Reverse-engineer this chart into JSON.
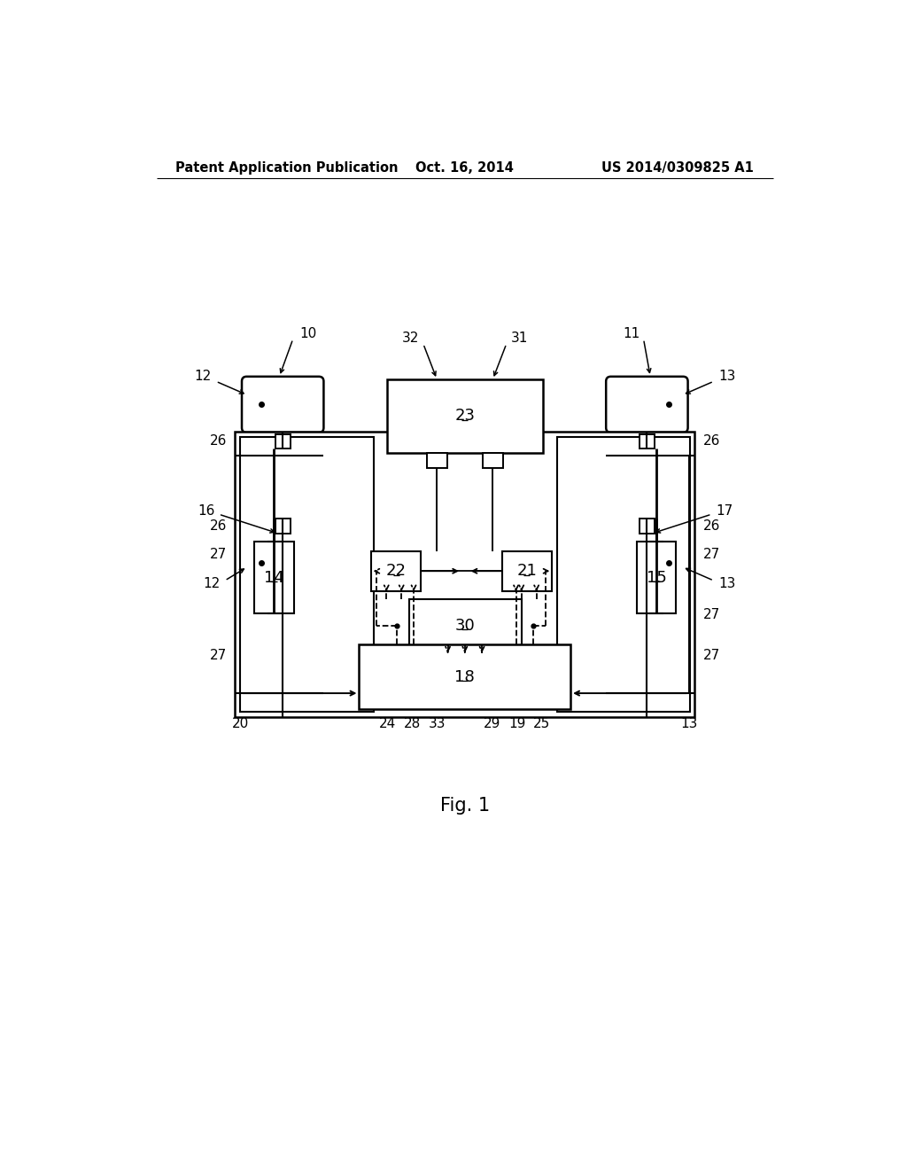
{
  "background_color": "#ffffff",
  "header_left": "Patent Application Publication",
  "header_center": "Oct. 16, 2014",
  "header_right": "US 2014/0309825 A1",
  "figure_label": "Fig. 1",
  "header_fontsize": 10.5,
  "fig_label_fontsize": 15,
  "label_fontsize": 11
}
